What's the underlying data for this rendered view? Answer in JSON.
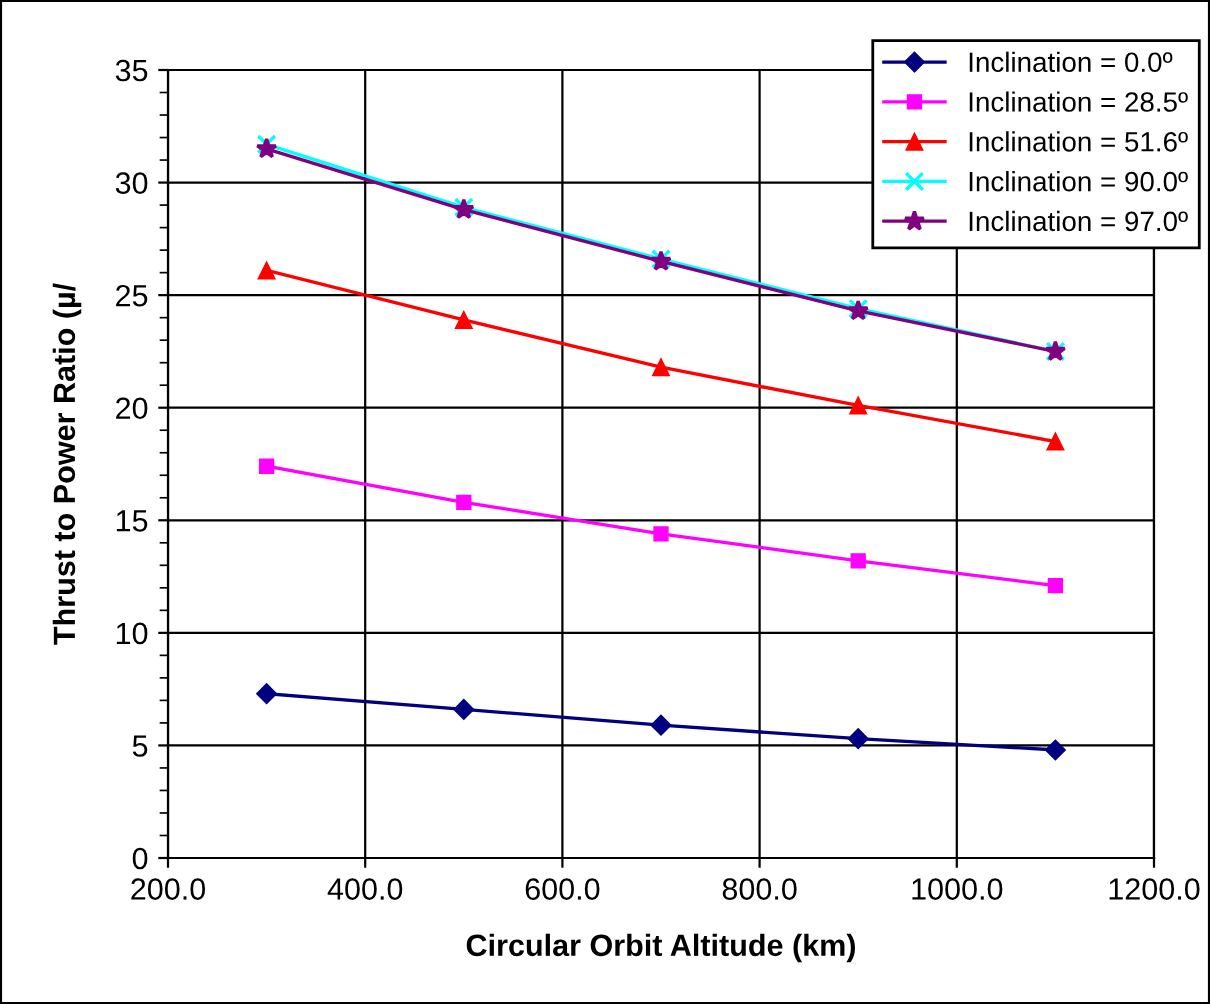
{
  "chart_data": {
    "type": "line",
    "xlabel": "Circular Orbit Altitude (km)",
    "ylabel": "Thrust to Power Ratio (µ/",
    "x": [
      300,
      500,
      700,
      900,
      1100
    ],
    "xlim": [
      200,
      1200
    ],
    "xticks": [
      {
        "value": 200,
        "label": "200.0"
      },
      {
        "value": 400,
        "label": "400.0"
      },
      {
        "value": 600,
        "label": "600.0"
      },
      {
        "value": 800,
        "label": "800.0"
      },
      {
        "value": 1000,
        "label": "1000.0"
      },
      {
        "value": 1200,
        "label": "1200.0"
      }
    ],
    "ylim": [
      0,
      35
    ],
    "yticks": [
      0,
      5,
      10,
      15,
      20,
      25,
      30,
      35
    ],
    "grid": true,
    "legend": "top right",
    "series": [
      {
        "name": "Inclination = 0.0º",
        "color": "#000080",
        "marker": "diamond",
        "values": [
          7.3,
          6.6,
          5.9,
          5.3,
          4.8
        ]
      },
      {
        "name": "Inclination = 28.5º",
        "color": "#ff00ff",
        "marker": "square",
        "values": [
          17.4,
          15.8,
          14.4,
          13.2,
          12.1
        ]
      },
      {
        "name": "Inclination = 51.6º",
        "color": "#ff0000",
        "marker": "triangle",
        "values": [
          26.1,
          23.9,
          21.8,
          20.1,
          18.5
        ]
      },
      {
        "name": "Inclination = 90.0º",
        "color": "#00ffff",
        "marker": "cross",
        "values": [
          31.7,
          28.9,
          26.6,
          24.4,
          22.5
        ]
      },
      {
        "name": "Inclination = 97.0º",
        "color": "#800080",
        "marker": "star",
        "values": [
          31.5,
          28.8,
          26.5,
          24.3,
          22.5
        ]
      }
    ]
  }
}
